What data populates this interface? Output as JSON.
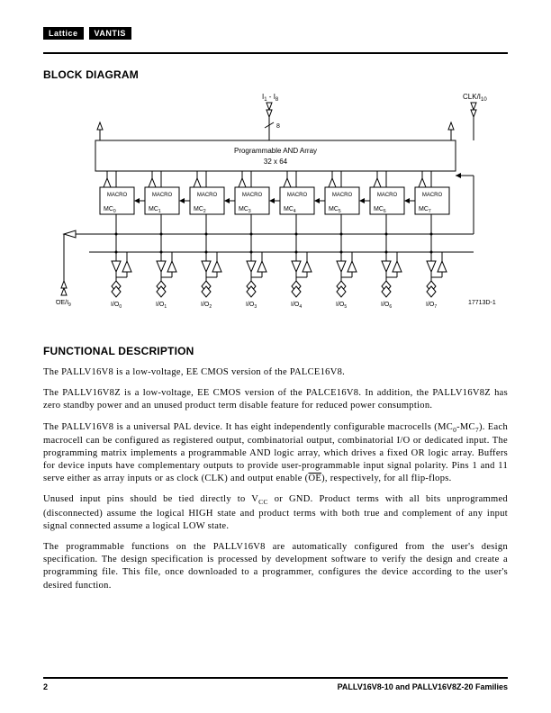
{
  "header": {
    "brand1": "Lattice",
    "brand2": "VANTIS"
  },
  "section1": {
    "title": "BLOCK DIAGRAM"
  },
  "diagram": {
    "input_label": "I₁ - I₈",
    "clk_label": "CLK/I₁₀",
    "bus_width": "8",
    "array_line1": "Programmable AND Array",
    "array_line2": "32 x 64",
    "macrocells": [
      {
        "label": "MACRO",
        "name": "MC",
        "sub": "0"
      },
      {
        "label": "MACRO",
        "name": "MC",
        "sub": "1"
      },
      {
        "label": "MACRO",
        "name": "MC",
        "sub": "2"
      },
      {
        "label": "MACRO",
        "name": "MC",
        "sub": "3"
      },
      {
        "label": "MACRO",
        "name": "MC",
        "sub": "4"
      },
      {
        "label": "MACRO",
        "name": "MC",
        "sub": "5"
      },
      {
        "label": "MACRO",
        "name": "MC",
        "sub": "6"
      },
      {
        "label": "MACRO",
        "name": "MC",
        "sub": "7"
      }
    ],
    "oe_label": "OE/I₉",
    "io_labels": [
      "I/O₀",
      "I/O₁",
      "I/O₂",
      "I/O₃",
      "I/O₄",
      "I/O₅",
      "I/O₆",
      "I/O₇"
    ],
    "doc_id": "17713D-1",
    "stroke": "#000000",
    "fill": "#ffffff",
    "font_small": 7,
    "font_tiny": 6
  },
  "section2": {
    "title": "FUNCTIONAL DESCRIPTION"
  },
  "paragraphs": {
    "p1": "The PALLV16V8 is a low-voltage, EE CMOS version of the PALCE16V8.",
    "p2": "The PALLV16V8Z is a low-voltage, EE CMOS version of the PALCE16V8. In addition, the PALLV16V8Z has zero standby power and an unused product term disable feature for reduced power consumption.",
    "p3a": "The PALLV16V8 is a universal PAL device. It has eight independently configurable macrocells (MC",
    "p3b": "-MC",
    "p3c": "). Each macrocell can be configured as registered output, combinatorial output, combinatorial I/O or dedicated input. The programming matrix implements a programmable AND logic array, which drives a fixed OR logic array. Buffers for device inputs have complementary outputs to provide user-programmable input signal polarity. Pins 1 and 11 serve either as array inputs or as clock (CLK) and output enable (",
    "p3d": "), respectively, for all flip-flops.",
    "p4a": "Unused input pins should be tied directly to V",
    "p4b": " or GND. Product terms with all bits unprogrammed (disconnected) assume the logical HIGH state and product terms with both true and complement of any input signal connected assume a logical LOW state.",
    "p5": "The programmable functions on the PALLV16V8 are automatically configured from the user's design specification. The design specification is processed by development software to verify the design and create a programming file. This file, once downloaded to a programmer, configures the device according to the user's desired function.",
    "oe": "OE",
    "vcc": "CC",
    "sub0": "0",
    "sub7": "7"
  },
  "footer": {
    "page": "2",
    "title": "PALLV16V8-10 and PALLV16V8Z-20 Families"
  }
}
